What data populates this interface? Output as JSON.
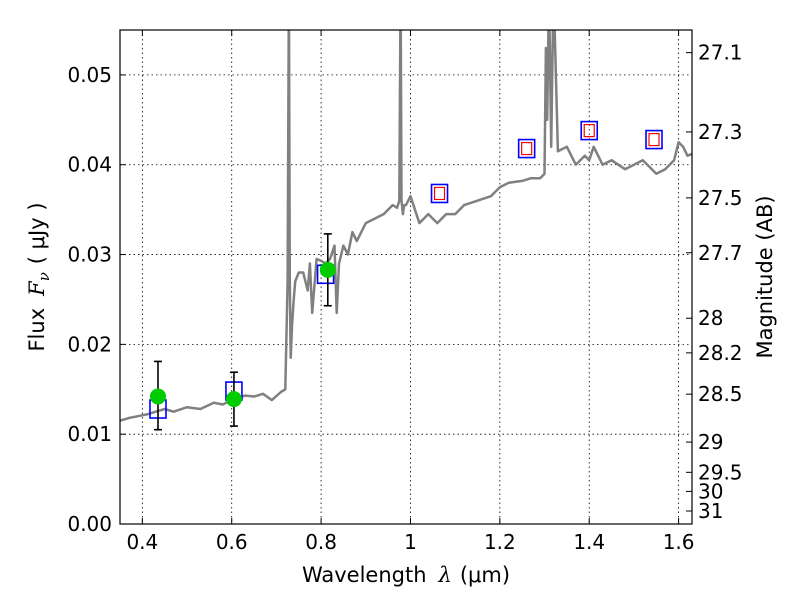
{
  "chart_data": {
    "type": "line",
    "xlabel_prefix": "Wavelength",
    "xlabel_symbol": "λ",
    "xlabel_units": "(μm)",
    "ylabel_prefix": "Flux",
    "ylabel_symbol": "F",
    "ylabel_sub": "ν",
    "ylabel_units": "( μJy )",
    "y2label": "Magnitude (AB)",
    "xlim": [
      0.35,
      1.63
    ],
    "ylim": [
      0.0,
      0.055
    ],
    "x_ticks": [
      {
        "value": 0.4,
        "label": "0.4"
      },
      {
        "value": 0.6,
        "label": "0.6"
      },
      {
        "value": 0.8,
        "label": "0.8"
      },
      {
        "value": 1.0,
        "label": "1"
      },
      {
        "value": 1.2,
        "label": "1.2"
      },
      {
        "value": 1.4,
        "label": "1.4"
      },
      {
        "value": 1.6,
        "label": "1.6"
      }
    ],
    "y_ticks": [
      {
        "value": 0.0,
        "label": "0.00"
      },
      {
        "value": 0.01,
        "label": "0.01"
      },
      {
        "value": 0.02,
        "label": "0.02"
      },
      {
        "value": 0.03,
        "label": "0.03"
      },
      {
        "value": 0.04,
        "label": "0.04"
      },
      {
        "value": 0.05,
        "label": "0.05"
      }
    ],
    "mag_ticks": [
      {
        "mag": 27.1,
        "label": "27.1"
      },
      {
        "mag": 27.3,
        "label": "27.3"
      },
      {
        "mag": 27.5,
        "label": "27.5"
      },
      {
        "mag": 27.7,
        "label": "27.7"
      },
      {
        "mag": 28.0,
        "label": "28"
      },
      {
        "mag": 28.2,
        "label": "28.2"
      },
      {
        "mag": 28.5,
        "label": "28.5"
      },
      {
        "mag": 29.0,
        "label": "29"
      },
      {
        "mag": 29.5,
        "label": "29.5"
      },
      {
        "mag": 30.0,
        "label": "30"
      },
      {
        "mag": 31.0,
        "label": "31"
      }
    ],
    "grid": true,
    "colors": {
      "spectrum": "#808080",
      "model_box": "#0000ff",
      "model_inner": "#ff0000",
      "observed": "#00cc00",
      "errorbar": "#000000"
    },
    "series": [
      {
        "name": "model-spectrum",
        "kind": "line",
        "x": [
          0.35,
          0.37,
          0.39,
          0.41,
          0.43,
          0.45,
          0.47,
          0.5,
          0.53,
          0.56,
          0.58,
          0.6,
          0.63,
          0.65,
          0.67,
          0.69,
          0.71,
          0.72,
          0.725,
          0.728,
          0.73,
          0.732,
          0.735,
          0.738,
          0.742,
          0.75,
          0.76,
          0.77,
          0.775,
          0.78,
          0.785,
          0.79,
          0.8,
          0.81,
          0.82,
          0.83,
          0.835,
          0.84,
          0.85,
          0.86,
          0.87,
          0.88,
          0.9,
          0.92,
          0.94,
          0.96,
          0.97,
          0.975,
          0.978,
          0.98,
          0.983,
          0.986,
          0.99,
          1.0,
          1.02,
          1.04,
          1.06,
          1.08,
          1.1,
          1.12,
          1.15,
          1.18,
          1.2,
          1.22,
          1.25,
          1.27,
          1.29,
          1.3,
          1.303,
          1.306,
          1.31,
          1.315,
          1.32,
          1.33,
          1.35,
          1.37,
          1.39,
          1.4,
          1.41,
          1.43,
          1.45,
          1.48,
          1.5,
          1.52,
          1.55,
          1.57,
          1.59,
          1.6,
          1.61,
          1.62,
          1.63
        ],
        "y": [
          0.0115,
          0.0118,
          0.012,
          0.0122,
          0.0125,
          0.0128,
          0.0125,
          0.013,
          0.0128,
          0.0135,
          0.0133,
          0.0138,
          0.0143,
          0.0142,
          0.0145,
          0.0138,
          0.0147,
          0.015,
          0.027,
          0.06,
          0.027,
          0.0185,
          0.022,
          0.0245,
          0.027,
          0.028,
          0.028,
          0.026,
          0.029,
          0.0235,
          0.0265,
          0.0295,
          0.0293,
          0.029,
          0.0295,
          0.031,
          0.0235,
          0.029,
          0.031,
          0.03,
          0.0325,
          0.0315,
          0.0335,
          0.034,
          0.0345,
          0.0355,
          0.0352,
          0.036,
          0.06,
          0.036,
          0.0345,
          0.0355,
          0.0355,
          0.0365,
          0.0335,
          0.0345,
          0.0335,
          0.0345,
          0.0345,
          0.0355,
          0.036,
          0.0365,
          0.0375,
          0.038,
          0.0382,
          0.0385,
          0.0385,
          0.039,
          0.053,
          0.045,
          0.06,
          0.042,
          0.06,
          0.0415,
          0.042,
          0.04,
          0.041,
          0.0405,
          0.042,
          0.04,
          0.0405,
          0.0395,
          0.04,
          0.0405,
          0.039,
          0.0395,
          0.0405,
          0.0425,
          0.042,
          0.041,
          0.0412
        ]
      },
      {
        "name": "model-photometry",
        "kind": "open-square",
        "x": [
          0.435,
          0.605,
          0.81,
          1.065,
          1.26,
          1.4,
          1.545
        ],
        "y": [
          0.0128,
          0.0148,
          0.0278,
          0.0368,
          0.0418,
          0.0438,
          0.0428
        ],
        "inner_red": [
          false,
          false,
          false,
          true,
          true,
          true,
          true
        ]
      },
      {
        "name": "observed-flux",
        "kind": "point-errorbar",
        "x": [
          0.435,
          0.605,
          0.815
        ],
        "y": [
          0.0142,
          0.0139,
          0.0283
        ],
        "yerr_low": [
          0.0037,
          0.003,
          0.004
        ],
        "yerr_high": [
          0.0039,
          0.003,
          0.004
        ]
      }
    ]
  }
}
